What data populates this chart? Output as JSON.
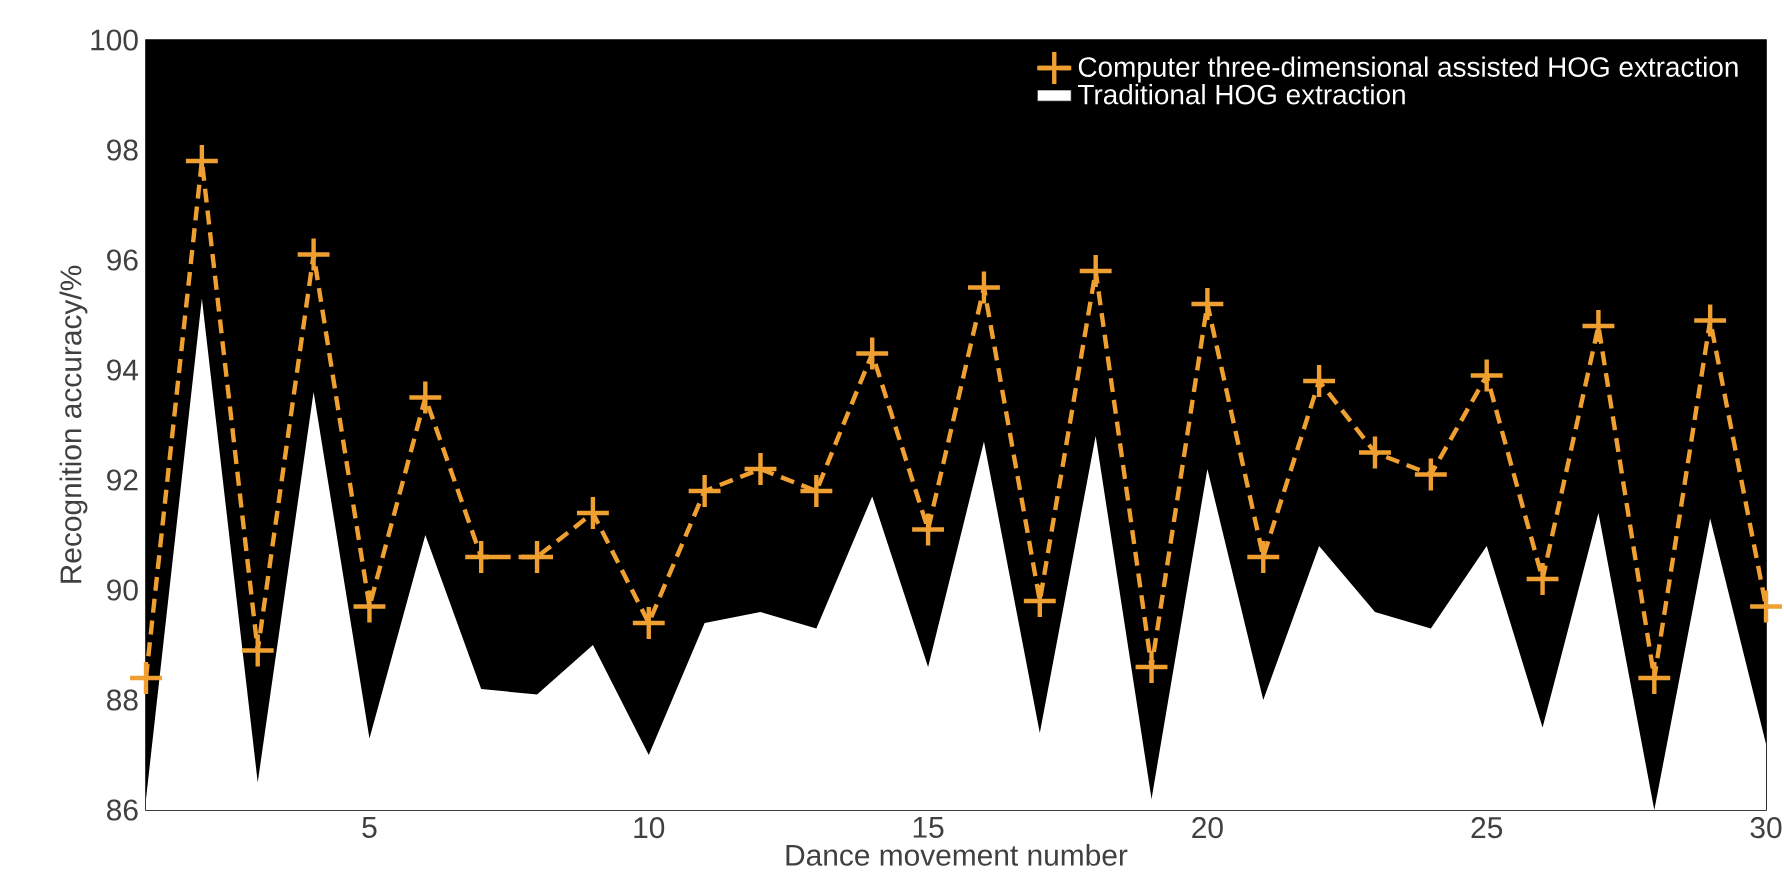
{
  "chart_data": {
    "type": "line",
    "xlabel": "Dance movement number",
    "ylabel": "Recognition accuracy/%",
    "x": [
      1,
      2,
      3,
      4,
      5,
      6,
      7,
      8,
      9,
      10,
      11,
      12,
      13,
      14,
      15,
      16,
      17,
      18,
      19,
      20,
      21,
      22,
      23,
      24,
      25,
      26,
      27,
      28,
      29,
      30
    ],
    "series": [
      {
        "name": "Computer three-dimensional assisted HOG extraction",
        "color": "#f0a030",
        "marker": "cross",
        "line_style": "dashed",
        "values": [
          88.4,
          97.8,
          88.9,
          96.1,
          89.7,
          93.5,
          90.6,
          90.6,
          91.4,
          89.4,
          91.8,
          92.2,
          91.8,
          94.3,
          91.1,
          95.5,
          89.8,
          95.8,
          88.6,
          95.2,
          90.6,
          93.8,
          92.5,
          92.1,
          93.9,
          90.2,
          94.8,
          88.4,
          94.9,
          89.7
        ]
      },
      {
        "name": "Traditional HOG extraction",
        "type": "area",
        "color": "#ffffff",
        "values": [
          86.2,
          95.3,
          86.5,
          93.6,
          87.3,
          91.0,
          88.2,
          88.1,
          89.0,
          87.0,
          89.4,
          89.6,
          89.3,
          91.7,
          88.6,
          92.7,
          87.4,
          92.8,
          86.2,
          92.2,
          88.0,
          90.8,
          89.6,
          89.3,
          90.8,
          87.5,
          91.4,
          86.0,
          91.3,
          87.2
        ]
      }
    ],
    "xlim": [
      1,
      30
    ],
    "xticks": [
      5,
      10,
      15,
      20,
      25,
      30
    ],
    "ylim": [
      86,
      100
    ],
    "yticks": [
      86,
      88,
      90,
      92,
      94,
      96,
      98,
      100
    ],
    "grid": false,
    "legend": "top right"
  }
}
